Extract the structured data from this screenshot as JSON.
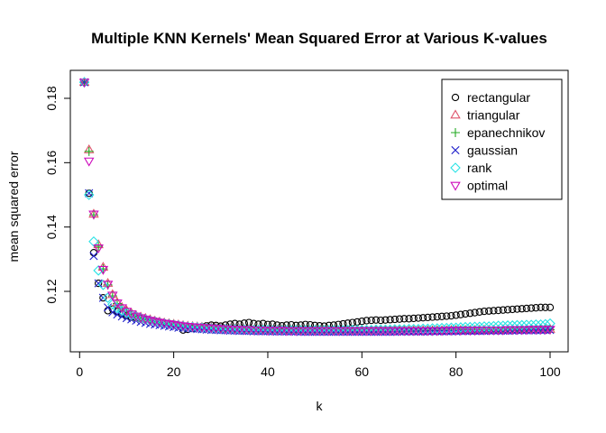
{
  "chart_data": {
    "type": "scatter",
    "title": "Multiple KNN Kernels' Mean Squared Error at Various K-values",
    "xlabel": "k",
    "ylabel": "mean squared error",
    "xlim": [
      0,
      100
    ],
    "ylim": [
      0.105,
      0.19
    ],
    "xticks": [
      0,
      20,
      40,
      60,
      80,
      100
    ],
    "yticks": [
      0.12,
      0.14,
      0.16,
      0.18
    ],
    "grid": false,
    "legend_position": "top-right",
    "x": [
      1,
      2,
      3,
      4,
      5,
      6,
      7,
      8,
      9,
      10,
      11,
      12,
      13,
      14,
      15,
      16,
      17,
      18,
      19,
      20,
      21,
      22,
      23,
      24,
      25,
      26,
      27,
      28,
      29,
      30,
      31,
      32,
      33,
      34,
      35,
      36,
      37,
      38,
      39,
      40,
      41,
      42,
      43,
      44,
      45,
      46,
      47,
      48,
      49,
      50,
      51,
      52,
      53,
      54,
      55,
      56,
      57,
      58,
      59,
      60,
      61,
      62,
      63,
      64,
      65,
      66,
      67,
      68,
      69,
      70,
      71,
      72,
      73,
      74,
      75,
      76,
      77,
      78,
      79,
      80,
      81,
      82,
      83,
      84,
      85,
      86,
      87,
      88,
      89,
      90,
      91,
      92,
      93,
      94,
      95,
      96,
      97,
      98,
      99,
      100
    ],
    "series": [
      {
        "name": "rectangular",
        "color": "#000000",
        "marker": "circle",
        "values": [
          0.185,
          0.1505,
          0.132,
          0.1225,
          0.118,
          0.114,
          0.1145,
          0.1138,
          0.113,
          0.1125,
          0.112,
          0.1118,
          0.1115,
          0.1112,
          0.111,
          0.1108,
          0.1105,
          0.1102,
          0.11,
          0.1098,
          0.1095,
          0.108,
          0.1082,
          0.1085,
          0.1088,
          0.109,
          0.1093,
          0.1095,
          0.1094,
          0.1092,
          0.1095,
          0.1098,
          0.11,
          0.1098,
          0.1101,
          0.1103,
          0.11,
          0.1098,
          0.11,
          0.1097,
          0.1098,
          0.1095,
          0.1093,
          0.1095,
          0.1096,
          0.1094,
          0.1095,
          0.1097,
          0.1096,
          0.1094,
          0.1093,
          0.1092,
          0.1094,
          0.1095,
          0.1097,
          0.1099,
          0.1101,
          0.1103,
          0.1105,
          0.1107,
          0.1109,
          0.111,
          0.1111,
          0.111,
          0.1111,
          0.1112,
          0.1113,
          0.1114,
          0.1115,
          0.1115,
          0.1116,
          0.1117,
          0.1118,
          0.1119,
          0.112,
          0.1121,
          0.1122,
          0.1123,
          0.1124,
          0.1126,
          0.1128,
          0.113,
          0.1132,
          0.1134,
          0.1136,
          0.1138,
          0.1139,
          0.114,
          0.1141,
          0.1142,
          0.1143,
          0.1144,
          0.1145,
          0.1146,
          0.1147,
          0.1148,
          0.1149,
          0.115,
          0.115,
          0.115
        ]
      },
      {
        "name": "triangular",
        "color": "#DF536B",
        "marker": "triangle-up",
        "values": [
          0.185,
          0.164,
          0.144,
          0.1345,
          0.1275,
          0.1225,
          0.119,
          0.1165,
          0.115,
          0.114,
          0.1132,
          0.1125,
          0.112,
          0.1116,
          0.1112,
          0.1108,
          0.1105,
          0.1102,
          0.11,
          0.1098,
          0.1096,
          0.1094,
          0.1092,
          0.1091,
          0.109,
          0.1089,
          0.1088,
          0.1087,
          0.1086,
          0.1085,
          0.1084,
          0.1084,
          0.1083,
          0.1083,
          0.1082,
          0.1082,
          0.1081,
          0.1081,
          0.1081,
          0.108,
          0.108,
          0.108,
          0.108,
          0.1079,
          0.1079,
          0.1079,
          0.1079,
          0.1079,
          0.1078,
          0.1078,
          0.1078,
          0.1078,
          0.1078,
          0.1078,
          0.1078,
          0.1078,
          0.1078,
          0.1078,
          0.1078,
          0.1078,
          0.1078,
          0.1078,
          0.1078,
          0.1078,
          0.1078,
          0.1078,
          0.1078,
          0.1078,
          0.1078,
          0.1078,
          0.1078,
          0.1078,
          0.1078,
          0.1078,
          0.1078,
          0.1078,
          0.1078,
          0.1078,
          0.1079,
          0.1079,
          0.1079,
          0.1079,
          0.1079,
          0.1079,
          0.108,
          0.108,
          0.108,
          0.108,
          0.108,
          0.1081,
          0.1081,
          0.1081,
          0.1081,
          0.1081,
          0.1082,
          0.1082,
          0.1082,
          0.1082,
          0.1082,
          0.1082
        ]
      },
      {
        "name": "epanechnikov",
        "color": "#22AA22",
        "marker": "plus",
        "values": [
          0.185,
          0.1635,
          0.1438,
          0.134,
          0.127,
          0.122,
          0.1186,
          0.1162,
          0.1147,
          0.1137,
          0.1129,
          0.1122,
          0.1117,
          0.1113,
          0.1109,
          0.1106,
          0.1103,
          0.11,
          0.1098,
          0.1096,
          0.1094,
          0.1092,
          0.109,
          0.1089,
          0.1088,
          0.1087,
          0.1086,
          0.1085,
          0.1084,
          0.1083,
          0.1083,
          0.1082,
          0.1082,
          0.1081,
          0.1081,
          0.108,
          0.108,
          0.108,
          0.1079,
          0.1079,
          0.1079,
          0.1079,
          0.1078,
          0.1078,
          0.1078,
          0.1078,
          0.1078,
          0.1077,
          0.1077,
          0.1077,
          0.1077,
          0.1077,
          0.1077,
          0.1077,
          0.1077,
          0.1077,
          0.1077,
          0.1077,
          0.1077,
          0.1077,
          0.1077,
          0.1077,
          0.1077,
          0.1077,
          0.1077,
          0.1077,
          0.1077,
          0.1077,
          0.1077,
          0.1077,
          0.1077,
          0.1077,
          0.1077,
          0.1078,
          0.1078,
          0.1078,
          0.1078,
          0.1078,
          0.1078,
          0.1078,
          0.1078,
          0.1079,
          0.1079,
          0.1079,
          0.1079,
          0.1079,
          0.1079,
          0.108,
          0.108,
          0.108,
          0.108,
          0.108,
          0.108,
          0.1081,
          0.1081,
          0.1081,
          0.1081,
          0.1081,
          0.1081,
          0.1081
        ]
      },
      {
        "name": "gaussian",
        "color": "#2222CC",
        "marker": "cross",
        "values": [
          0.185,
          0.1505,
          0.131,
          0.1225,
          0.118,
          0.115,
          0.1135,
          0.1128,
          0.1122,
          0.1117,
          0.1113,
          0.1109,
          0.1105,
          0.1102,
          0.1099,
          0.1097,
          0.1095,
          0.1093,
          0.1091,
          0.1089,
          0.1087,
          0.1086,
          0.1085,
          0.1084,
          0.1083,
          0.1082,
          0.1081,
          0.108,
          0.108,
          0.1079,
          0.1079,
          0.1078,
          0.1078,
          0.1077,
          0.1077,
          0.1077,
          0.1076,
          0.1076,
          0.1076,
          0.1076,
          0.1075,
          0.1075,
          0.1075,
          0.1075,
          0.1075,
          0.1075,
          0.1074,
          0.1074,
          0.1074,
          0.1074,
          0.1074,
          0.1074,
          0.1074,
          0.1074,
          0.1074,
          0.1074,
          0.1074,
          0.1074,
          0.1074,
          0.1074,
          0.1074,
          0.1074,
          0.1074,
          0.1074,
          0.1074,
          0.1074,
          0.1074,
          0.1075,
          0.1075,
          0.1075,
          0.1075,
          0.1075,
          0.1075,
          0.1075,
          0.1076,
          0.1076,
          0.1076,
          0.1076,
          0.1076,
          0.1076,
          0.1077,
          0.1077,
          0.1077,
          0.1077,
          0.1077,
          0.1077,
          0.1078,
          0.1078,
          0.1078,
          0.1078,
          0.1078,
          0.1078,
          0.1079,
          0.1079,
          0.1079,
          0.1079,
          0.1079,
          0.1079,
          0.108,
          0.108
        ]
      },
      {
        "name": "rank",
        "color": "#28E2E5",
        "marker": "diamond",
        "values": [
          0.185,
          0.15,
          0.1355,
          0.1265,
          0.122,
          0.118,
          0.116,
          0.1148,
          0.114,
          0.1133,
          0.1127,
          0.1122,
          0.1117,
          0.1113,
          0.1109,
          0.1106,
          0.1103,
          0.11,
          0.1098,
          0.1096,
          0.1094,
          0.1092,
          0.109,
          0.1089,
          0.1088,
          0.1087,
          0.1086,
          0.1085,
          0.1084,
          0.1083,
          0.1083,
          0.1082,
          0.1082,
          0.1081,
          0.1081,
          0.108,
          0.108,
          0.108,
          0.108,
          0.108,
          0.1079,
          0.1079,
          0.1079,
          0.1079,
          0.1079,
          0.1079,
          0.1079,
          0.1079,
          0.1079,
          0.1079,
          0.1079,
          0.1079,
          0.1079,
          0.1079,
          0.1079,
          0.1079,
          0.108,
          0.108,
          0.108,
          0.108,
          0.108,
          0.108,
          0.1081,
          0.1081,
          0.1081,
          0.1081,
          0.1082,
          0.1082,
          0.1082,
          0.1083,
          0.1083,
          0.1083,
          0.1084,
          0.1084,
          0.1085,
          0.1085,
          0.1086,
          0.1086,
          0.1087,
          0.1087,
          0.1088,
          0.1089,
          0.1089,
          0.109,
          0.109,
          0.1091,
          0.1091,
          0.1092,
          0.1093,
          0.1093,
          0.1094,
          0.1094,
          0.1095,
          0.1095,
          0.1096,
          0.1096,
          0.1097,
          0.1097,
          0.1098,
          0.11
        ]
      },
      {
        "name": "optimal",
        "color": "#CD0BBC",
        "marker": "triangle-down",
        "values": [
          0.185,
          0.1605,
          0.144,
          0.1335,
          0.1268,
          0.1222,
          0.1188,
          0.1164,
          0.1149,
          0.1138,
          0.113,
          0.1123,
          0.1118,
          0.1114,
          0.111,
          0.1107,
          0.1104,
          0.1101,
          0.1099,
          0.1097,
          0.1095,
          0.1093,
          0.1091,
          0.109,
          0.1089,
          0.1088,
          0.1087,
          0.1086,
          0.1085,
          0.1084,
          0.1083,
          0.1083,
          0.1082,
          0.1082,
          0.1081,
          0.1081,
          0.108,
          0.108,
          0.108,
          0.1079,
          0.1079,
          0.1079,
          0.1079,
          0.1078,
          0.1078,
          0.1078,
          0.1078,
          0.1078,
          0.1078,
          0.1078,
          0.1078,
          0.1078,
          0.1078,
          0.1078,
          0.1078,
          0.1078,
          0.1078,
          0.1078,
          0.1078,
          0.1078,
          0.1078,
          0.1078,
          0.1078,
          0.1078,
          0.1078,
          0.1078,
          0.1078,
          0.1078,
          0.1078,
          0.1078,
          0.1078,
          0.1078,
          0.1078,
          0.1078,
          0.1078,
          0.1078,
          0.1078,
          0.1079,
          0.1079,
          0.1079,
          0.1079,
          0.1079,
          0.1079,
          0.1079,
          0.108,
          0.108,
          0.108,
          0.108,
          0.108,
          0.108,
          0.1081,
          0.1081,
          0.1081,
          0.1081,
          0.1081,
          0.1082,
          0.1082,
          0.1082,
          0.1082,
          0.1082
        ]
      }
    ]
  }
}
